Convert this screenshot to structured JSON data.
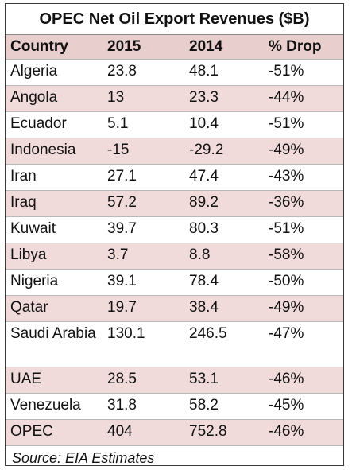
{
  "chart_data": {
    "type": "table",
    "title": "OPEC Net Oil Export Revenues ($B)",
    "columns": [
      "Country",
      "2015",
      "2014",
      "% Drop"
    ],
    "rows": [
      [
        "Algeria",
        "23.8",
        "48.1",
        "-51%"
      ],
      [
        "Angola",
        "13",
        "23.3",
        "-44%"
      ],
      [
        "Ecuador",
        "5.1",
        "10.4",
        "-51%"
      ],
      [
        "Indonesia",
        "-15",
        "-29.2",
        "-49%"
      ],
      [
        "Iran",
        "27.1",
        "47.4",
        "-43%"
      ],
      [
        "Iraq",
        "57.2",
        "89.2",
        "-36%"
      ],
      [
        "Kuwait",
        "39.7",
        "80.3",
        "-51%"
      ],
      [
        "Libya",
        "3.7",
        "8.8",
        "-58%"
      ],
      [
        "Nigeria",
        "39.1",
        "78.4",
        "-50%"
      ],
      [
        "Qatar",
        "19.7",
        "38.4",
        "-49%"
      ],
      [
        "Saudi Arabia",
        "130.1",
        "246.5",
        "-47%"
      ],
      [
        "UAE",
        "28.5",
        "53.1",
        "-46%"
      ],
      [
        "Venezuela",
        "31.8",
        "58.2",
        "-45%"
      ],
      [
        "OPEC",
        "404",
        "752.8",
        "-46%"
      ]
    ],
    "source": "Source: EIA Estimates"
  },
  "colors": {
    "header_row": "#e9cece",
    "band_row": "#f1dada",
    "plain_row": "#ffffff",
    "border": "#3a3a3a"
  }
}
